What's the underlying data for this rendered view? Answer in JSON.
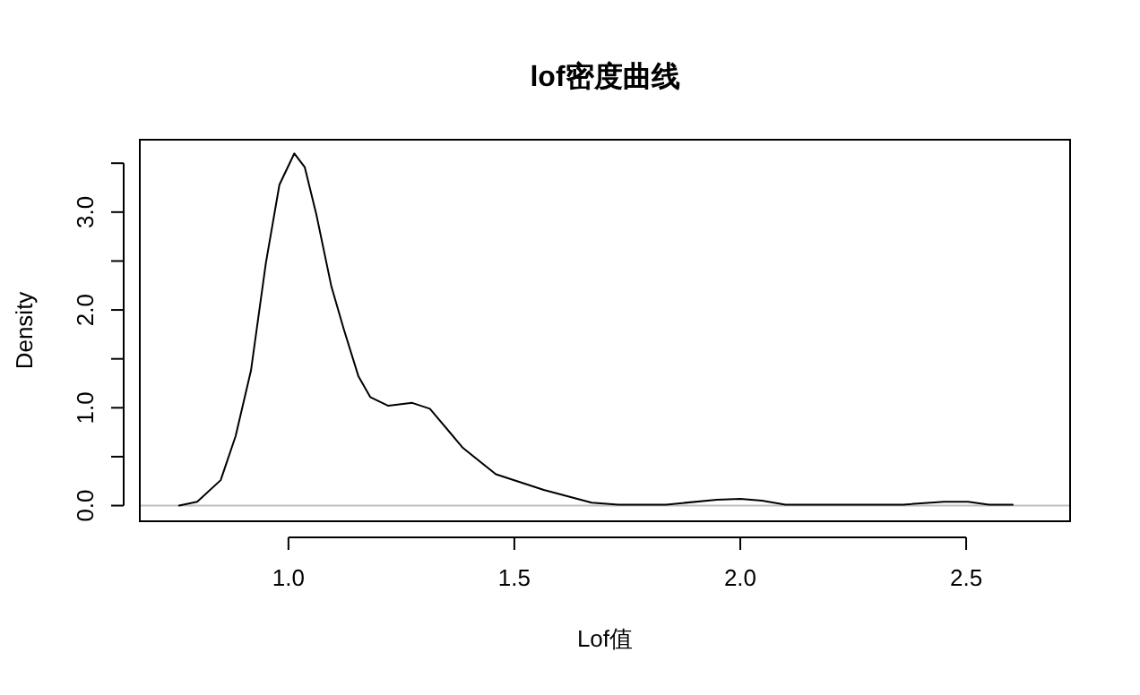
{
  "chart_data": {
    "type": "line",
    "title": "lof密度曲线",
    "xlabel": "Lof值",
    "ylabel": "Density",
    "x": [
      0.758,
      0.798,
      0.85,
      0.883,
      0.917,
      0.95,
      0.98,
      1.013,
      1.036,
      1.062,
      1.095,
      1.122,
      1.155,
      1.181,
      1.221,
      1.274,
      1.313,
      1.386,
      1.459,
      1.565,
      1.671,
      1.73,
      1.836,
      1.948,
      2.0,
      2.048,
      2.1,
      2.153,
      2.361,
      2.451,
      2.504,
      2.55,
      2.603
    ],
    "values": [
      0.0,
      0.04,
      0.26,
      0.71,
      1.38,
      2.48,
      3.28,
      3.6,
      3.46,
      2.97,
      2.24,
      1.81,
      1.32,
      1.11,
      1.02,
      1.05,
      0.99,
      0.59,
      0.32,
      0.16,
      0.03,
      0.01,
      0.01,
      0.06,
      0.07,
      0.05,
      0.01,
      0.01,
      0.01,
      0.04,
      0.04,
      0.01,
      0.01
    ],
    "color": "#000000",
    "xlim": [
      0.671,
      2.73
    ],
    "ylim": [
      -0.16,
      3.74
    ],
    "xticks": [
      {
        "value": 1,
        "label": "1.0"
      },
      {
        "value": 1.5,
        "label": "1.5"
      },
      {
        "value": 2,
        "label": "2.0"
      },
      {
        "value": 2.5,
        "label": "2.5"
      }
    ],
    "yticks": [
      {
        "value": 0,
        "label": "0.0"
      },
      {
        "value": 0.5,
        "label": null
      },
      {
        "value": 1,
        "label": "1.0"
      },
      {
        "value": 1.5,
        "label": null
      },
      {
        "value": 2,
        "label": "2.0"
      },
      {
        "value": 2.5,
        "label": null
      },
      {
        "value": 3,
        "label": "3.0"
      },
      {
        "value": 3.5,
        "label": null
      }
    ],
    "ref_lines": [
      {
        "axis": "y",
        "value": 0,
        "color": "#bebebe"
      }
    ]
  }
}
